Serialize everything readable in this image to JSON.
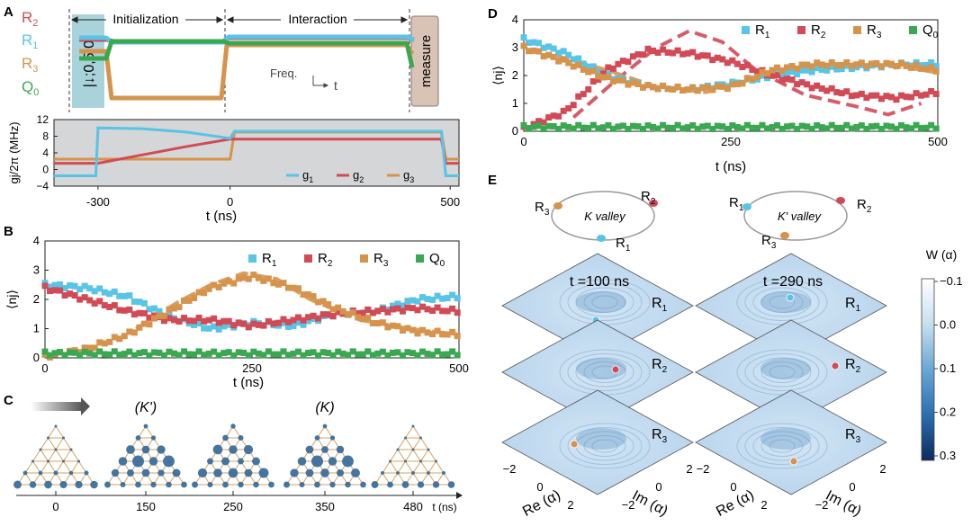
{
  "colors": {
    "R1": "#58c4e6",
    "R2": "#d24a56",
    "R3": "#d6934c",
    "Q0": "#3aa851",
    "grey": "#c9ccce",
    "purple": "#7b4a8c"
  },
  "panelA": {
    "letter": "A",
    "init_label": "Initialization",
    "inter_label": "Interaction",
    "rows": [
      {
        "sym": "R",
        "sub": "2"
      },
      {
        "sym": "R",
        "sub": "1"
      },
      {
        "sym": "R",
        "sub": "3"
      },
      {
        "sym": "Q",
        "sub": "0"
      }
    ],
    "state_label": "|↓;0,5,0⟩",
    "measure_label": "measure",
    "freq_label": "Freq.",
    "time_label": "t",
    "ylabel": "gj/2π (MHz)",
    "xlabel": "t (ns)",
    "yticks": [
      "12",
      "8",
      "4",
      "0",
      "−4"
    ],
    "xticks": [
      "-300",
      "0",
      "500"
    ],
    "legend": [
      {
        "sym": "g",
        "sub": "1"
      },
      {
        "sym": "g",
        "sub": "2"
      },
      {
        "sym": "g",
        "sub": "3"
      }
    ]
  },
  "panelB": {
    "letter": "B",
    "ylabel": "⟨nj⟩",
    "xlabel": "t (ns)",
    "yticks": [
      "4",
      "3",
      "2",
      "1",
      "0"
    ],
    "xticks": [
      "0",
      "250",
      "500"
    ],
    "legend": [
      {
        "sym": "R",
        "sub": "1"
      },
      {
        "sym": "R",
        "sub": "2"
      },
      {
        "sym": "R",
        "sub": "3"
      },
      {
        "sym": "Q",
        "sub": "0"
      }
    ]
  },
  "panelC": {
    "letter": "C",
    "labels": [
      "(K')",
      "(K)"
    ],
    "times": [
      "0",
      "150",
      "250",
      "350",
      "480"
    ],
    "unit": "t (ns)"
  },
  "panelD": {
    "letter": "D",
    "ylabel": "⟨nj⟩",
    "xlabel": "t (ns)",
    "yticks": [
      "4",
      "3",
      "2",
      "1",
      "0"
    ],
    "xticks": [
      "0",
      "250",
      "500"
    ],
    "legend": [
      {
        "sym": "R",
        "sub": "1"
      },
      {
        "sym": "R",
        "sub": "2"
      },
      {
        "sym": "R",
        "sub": "3"
      },
      {
        "sym": "Q",
        "sub": "0"
      }
    ]
  },
  "panelE": {
    "letter": "E",
    "valley_left": "K valley",
    "valley_right": "K' valley",
    "left_ring": [
      {
        "sym": "R",
        "sub": "3"
      },
      {
        "sym": "R",
        "sub": "2"
      },
      {
        "sym": "R",
        "sub": "1"
      }
    ],
    "right_ring": [
      {
        "sym": "R",
        "sub": "1"
      },
      {
        "sym": "R",
        "sub": "2"
      },
      {
        "sym": "R",
        "sub": "3"
      }
    ],
    "t_left": "t =100 ns",
    "t_right": "t =290 ns",
    "resonators": [
      {
        "sym": "R",
        "sub": "1"
      },
      {
        "sym": "R",
        "sub": "2"
      },
      {
        "sym": "R",
        "sub": "3"
      }
    ],
    "re_label": "Re (α)",
    "im_label": "Im (α)",
    "re_ticks": [
      "−2",
      "0",
      "2"
    ],
    "im_ticks": [
      "2",
      "0",
      "−2"
    ],
    "cbar_title": "W (α)",
    "cbar_ticks": [
      "−0.1",
      "0.0",
      "0.1",
      "0.2",
      "0.3"
    ]
  },
  "chart_data": [
    {
      "id": "A_bottom",
      "type": "line",
      "title": "",
      "xlabel": "t (ns)",
      "ylabel": "gj/2π (MHz)",
      "xlim": [
        -400,
        520
      ],
      "ylim": [
        -4,
        12
      ],
      "series": [
        {
          "name": "g1",
          "x": [
            -400,
            -305,
            -300,
            -200,
            -100,
            0,
            10,
            480,
            490,
            520
          ],
          "values": [
            -1.5,
            -1.5,
            10,
            9.8,
            9,
            7.5,
            9.2,
            9.2,
            -1.5,
            -1.5
          ]
        },
        {
          "name": "g2",
          "x": [
            -400,
            -300,
            -200,
            -100,
            0,
            480,
            490,
            520
          ],
          "values": [
            1.5,
            1.5,
            3.5,
            5.5,
            7.3,
            7.3,
            1.5,
            1.5
          ]
        },
        {
          "name": "g3",
          "x": [
            -400,
            -300,
            0,
            10,
            480,
            490,
            520
          ],
          "values": [
            2.5,
            2.5,
            2.5,
            9,
            9,
            2.5,
            2.5
          ]
        }
      ]
    },
    {
      "id": "B",
      "type": "scatter",
      "title": "",
      "xlabel": "t (ns)",
      "ylabel": "⟨nj⟩",
      "xlim": [
        0,
        500
      ],
      "ylim": [
        0,
        4
      ],
      "x": [
        0,
        50,
        100,
        150,
        200,
        250,
        300,
        350,
        400,
        450,
        500
      ],
      "series": [
        {
          "name": "R1",
          "values": [
            2.5,
            2.4,
            2.1,
            1.4,
            1.0,
            1.2,
            1.1,
            1.5,
            1.6,
            2.0,
            2.1
          ]
        },
        {
          "name": "R2",
          "values": [
            2.4,
            2.0,
            1.6,
            1.3,
            1.3,
            1.1,
            1.3,
            1.5,
            1.6,
            1.7,
            1.6
          ]
        },
        {
          "name": "R3",
          "values": [
            0.05,
            0.3,
            0.8,
            1.6,
            2.4,
            2.8,
            2.4,
            1.7,
            1.2,
            0.9,
            0.8
          ]
        },
        {
          "name": "Q0",
          "values": [
            0.15,
            0.15,
            0.15,
            0.15,
            0.15,
            0.15,
            0.15,
            0.15,
            0.15,
            0.15,
            0.15
          ]
        }
      ]
    },
    {
      "id": "D",
      "type": "scatter",
      "title": "",
      "xlabel": "t (ns)",
      "ylabel": "⟨nj⟩",
      "xlim": [
        0,
        500
      ],
      "ylim": [
        0,
        4
      ],
      "x": [
        0,
        50,
        100,
        150,
        200,
        250,
        300,
        350,
        400,
        450,
        500
      ],
      "series": [
        {
          "name": "R1",
          "values": [
            3.3,
            2.8,
            2.0,
            1.6,
            1.5,
            1.7,
            2.0,
            2.2,
            2.3,
            2.4,
            2.4
          ]
        },
        {
          "name": "R2",
          "values": [
            0.1,
            0.7,
            2.2,
            2.9,
            2.8,
            2.5,
            2.0,
            1.6,
            1.3,
            1.2,
            1.4
          ]
        },
        {
          "name": "R3",
          "values": [
            3.0,
            2.5,
            1.9,
            1.6,
            1.5,
            1.6,
            2.2,
            2.4,
            2.4,
            2.4,
            2.2
          ]
        },
        {
          "name": "Q0",
          "values": [
            0.15,
            0.15,
            0.15,
            0.15,
            0.15,
            0.15,
            0.15,
            0.15,
            0.15,
            0.15,
            0.15
          ]
        }
      ]
    }
  ]
}
